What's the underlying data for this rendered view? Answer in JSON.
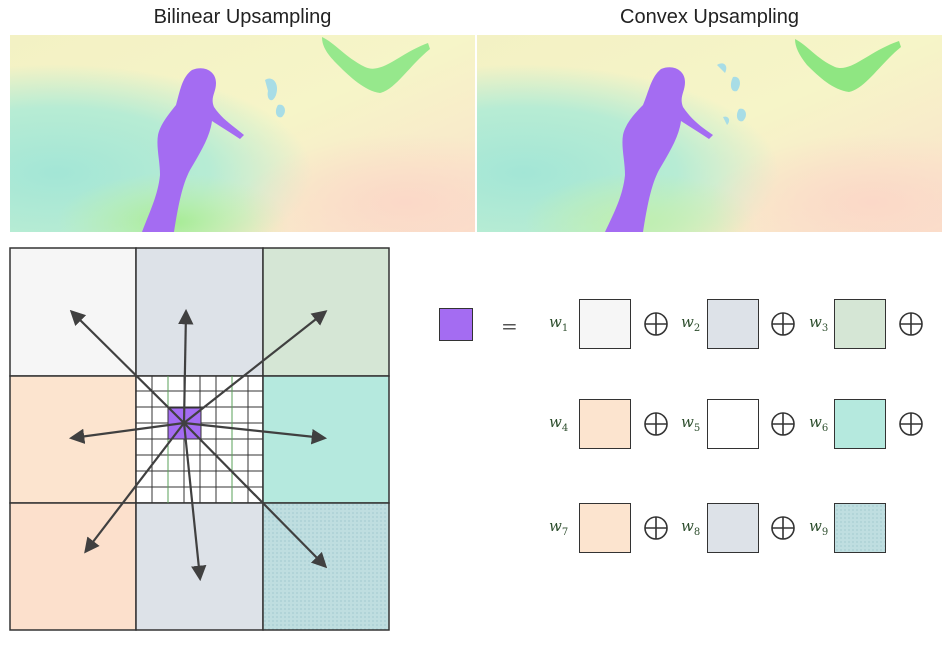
{
  "titles": {
    "left": "Bilinear Upsampling",
    "right": "Convex Upsampling"
  },
  "colors": {
    "purple": "#a46cf2",
    "white_cell": "#f6f6f6",
    "bluegray_cell": "#dde2e8",
    "green_cell": "#d5e6d5",
    "peach_cell": "#fce4cf",
    "teal_cell": "#b5e9de",
    "teal_dotted_cell": "#bfdee0",
    "arrow": "#404040",
    "weight_text": "#2f4f2f"
  },
  "equation": {
    "equals": "=",
    "operator_icon": "circled-plus-icon",
    "weights": [
      {
        "w": "w",
        "i": "1",
        "fill": "#f6f6f6"
      },
      {
        "w": "w",
        "i": "2",
        "fill": "#dde2e8"
      },
      {
        "w": "w",
        "i": "3",
        "fill": "#d5e6d5"
      },
      {
        "w": "w",
        "i": "4",
        "fill": "#fce4cf"
      },
      {
        "w": "w",
        "i": "5",
        "fill": "#ffffff"
      },
      {
        "w": "w",
        "i": "6",
        "fill": "#b5e9de"
      },
      {
        "w": "w",
        "i": "7",
        "fill": "#fce4cf"
      },
      {
        "w": "w",
        "i": "8",
        "fill": "#dde2e8"
      },
      {
        "w": "w",
        "i": "9",
        "fill": "#bfdee0"
      }
    ]
  }
}
